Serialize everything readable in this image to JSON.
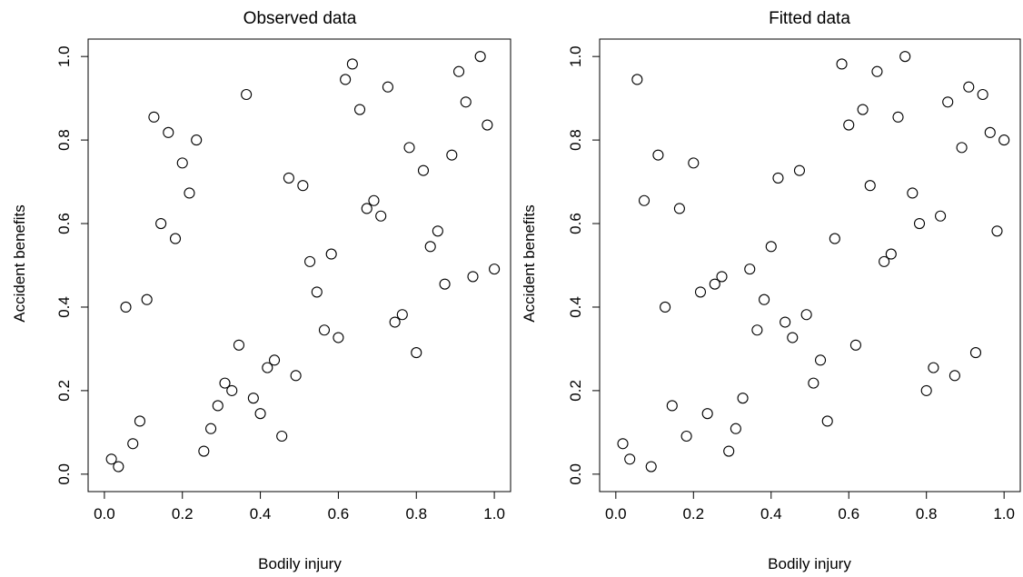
{
  "chart_data": [
    {
      "type": "scatter",
      "title": "Observed data",
      "xlabel": "Bodily injury",
      "ylabel": "Accident benefits",
      "xlim": [
        0,
        1
      ],
      "ylim": [
        0,
        1
      ],
      "xticks": [
        "0.0",
        "0.2",
        "0.4",
        "0.6",
        "0.8",
        "1.0"
      ],
      "yticks": [
        "0.0",
        "0.2",
        "0.4",
        "0.6",
        "0.8",
        "1.0"
      ],
      "grid": false,
      "marker": "open-circle",
      "points": [
        [
          0.018,
          0.036
        ],
        [
          0.036,
          0.018
        ],
        [
          0.055,
          0.4
        ],
        [
          0.073,
          0.073
        ],
        [
          0.091,
          0.127
        ],
        [
          0.109,
          0.418
        ],
        [
          0.127,
          0.855
        ],
        [
          0.145,
          0.6
        ],
        [
          0.164,
          0.818
        ],
        [
          0.182,
          0.564
        ],
        [
          0.2,
          0.745
        ],
        [
          0.218,
          0.673
        ],
        [
          0.236,
          0.8
        ],
        [
          0.255,
          0.055
        ],
        [
          0.273,
          0.109
        ],
        [
          0.291,
          0.164
        ],
        [
          0.309,
          0.218
        ],
        [
          0.327,
          0.2
        ],
        [
          0.345,
          0.309
        ],
        [
          0.364,
          0.909
        ],
        [
          0.382,
          0.182
        ],
        [
          0.4,
          0.145
        ],
        [
          0.418,
          0.255
        ],
        [
          0.436,
          0.273
        ],
        [
          0.455,
          0.091
        ],
        [
          0.473,
          0.709
        ],
        [
          0.491,
          0.236
        ],
        [
          0.509,
          0.691
        ],
        [
          0.527,
          0.509
        ],
        [
          0.545,
          0.436
        ],
        [
          0.564,
          0.345
        ],
        [
          0.582,
          0.527
        ],
        [
          0.6,
          0.327
        ],
        [
          0.618,
          0.945
        ],
        [
          0.636,
          0.982
        ],
        [
          0.655,
          0.873
        ],
        [
          0.673,
          0.636
        ],
        [
          0.691,
          0.655
        ],
        [
          0.709,
          0.618
        ],
        [
          0.727,
          0.927
        ],
        [
          0.745,
          0.364
        ],
        [
          0.764,
          0.382
        ],
        [
          0.782,
          0.782
        ],
        [
          0.8,
          0.291
        ],
        [
          0.818,
          0.727
        ],
        [
          0.836,
          0.545
        ],
        [
          0.855,
          0.582
        ],
        [
          0.873,
          0.455
        ],
        [
          0.891,
          0.764
        ],
        [
          0.909,
          0.964
        ],
        [
          0.927,
          0.891
        ],
        [
          0.945,
          0.473
        ],
        [
          0.964,
          1.0
        ],
        [
          0.982,
          0.836
        ],
        [
          1.0,
          0.491
        ]
      ]
    },
    {
      "type": "scatter",
      "title": "Fitted data",
      "xlabel": "Bodily injury",
      "ylabel": "Accident benefits",
      "xlim": [
        0,
        1
      ],
      "ylim": [
        0,
        1
      ],
      "xticks": [
        "0.0",
        "0.2",
        "0.4",
        "0.6",
        "0.8",
        "1.0"
      ],
      "yticks": [
        "0.0",
        "0.2",
        "0.4",
        "0.6",
        "0.8",
        "1.0"
      ],
      "grid": false,
      "marker": "open-circle",
      "points": [
        [
          0.018,
          0.073
        ],
        [
          0.036,
          0.036
        ],
        [
          0.055,
          0.945
        ],
        [
          0.073,
          0.655
        ],
        [
          0.091,
          0.018
        ],
        [
          0.109,
          0.764
        ],
        [
          0.127,
          0.4
        ],
        [
          0.145,
          0.164
        ],
        [
          0.164,
          0.636
        ],
        [
          0.182,
          0.091
        ],
        [
          0.2,
          0.745
        ],
        [
          0.218,
          0.436
        ],
        [
          0.236,
          0.145
        ],
        [
          0.255,
          0.455
        ],
        [
          0.273,
          0.473
        ],
        [
          0.291,
          0.055
        ],
        [
          0.309,
          0.109
        ],
        [
          0.327,
          0.182
        ],
        [
          0.345,
          0.491
        ],
        [
          0.364,
          0.345
        ],
        [
          0.382,
          0.418
        ],
        [
          0.4,
          0.545
        ],
        [
          0.418,
          0.709
        ],
        [
          0.436,
          0.364
        ],
        [
          0.455,
          0.327
        ],
        [
          0.473,
          0.727
        ],
        [
          0.491,
          0.382
        ],
        [
          0.509,
          0.218
        ],
        [
          0.527,
          0.273
        ],
        [
          0.545,
          0.127
        ],
        [
          0.564,
          0.564
        ],
        [
          0.582,
          0.982
        ],
        [
          0.6,
          0.836
        ],
        [
          0.618,
          0.309
        ],
        [
          0.636,
          0.873
        ],
        [
          0.655,
          0.691
        ],
        [
          0.673,
          0.964
        ],
        [
          0.691,
          0.509
        ],
        [
          0.709,
          0.527
        ],
        [
          0.727,
          0.855
        ],
        [
          0.745,
          1.0
        ],
        [
          0.764,
          0.673
        ],
        [
          0.782,
          0.6
        ],
        [
          0.8,
          0.2
        ],
        [
          0.818,
          0.255
        ],
        [
          0.836,
          0.618
        ],
        [
          0.855,
          0.891
        ],
        [
          0.873,
          0.236
        ],
        [
          0.891,
          0.782
        ],
        [
          0.909,
          0.927
        ],
        [
          0.927,
          0.291
        ],
        [
          0.945,
          0.909
        ],
        [
          0.964,
          0.818
        ],
        [
          0.982,
          0.582
        ],
        [
          1.0,
          0.8
        ]
      ]
    }
  ]
}
